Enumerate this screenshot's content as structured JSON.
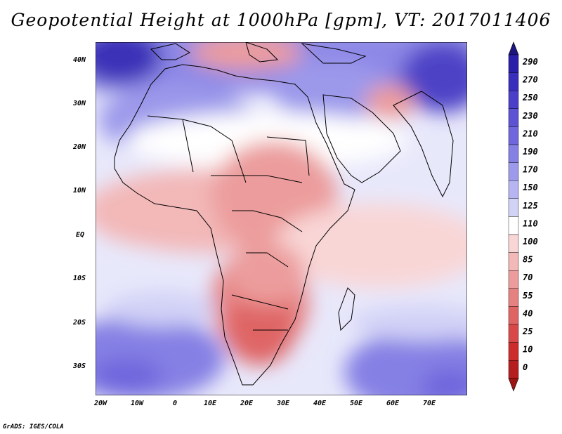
{
  "title": "Geopotential Height at 1000hPa [gpm], VT: 2017011406",
  "credit": "GrADS: IGES/COLA",
  "map": {
    "lat_labels": [
      "40N",
      "30N",
      "20N",
      "10N",
      "EQ",
      "10S",
      "20S",
      "30S"
    ],
    "lon_labels": [
      "20W",
      "10W",
      "0",
      "10E",
      "20E",
      "30E",
      "40E",
      "50E",
      "60E",
      "70E"
    ]
  },
  "colorbar": {
    "levels": [
      "290",
      "270",
      "250",
      "230",
      "210",
      "190",
      "170",
      "150",
      "125",
      "110",
      "100",
      "85",
      "70",
      "55",
      "40",
      "25",
      "10",
      "0"
    ],
    "colors": [
      "#2a1fa8",
      "#3a2fbd",
      "#4b3fc9",
      "#5d52d4",
      "#6f66dd",
      "#8580e4",
      "#9d9aeb",
      "#b6b5f1",
      "#d2d2f7",
      "#ffffff",
      "#f9d6d6",
      "#f3b8b8",
      "#ec9c9c",
      "#e68181",
      "#df6565",
      "#d84848",
      "#cc2c2c",
      "#b51e1e"
    ],
    "top_color": "#1d1580",
    "bottom_color": "#9c1414"
  }
}
